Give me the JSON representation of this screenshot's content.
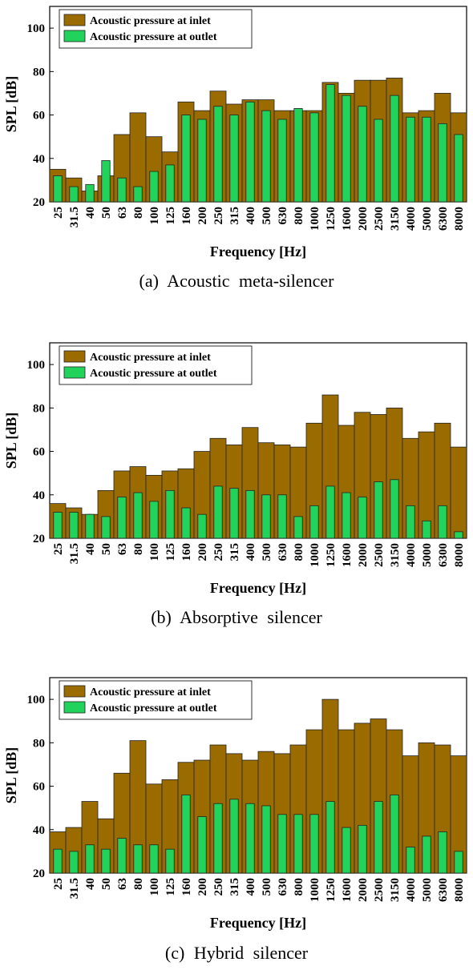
{
  "legend": {
    "inlet": "Acoustic pressure at inlet",
    "outlet": "Acoustic pressure at outlet"
  },
  "colors": {
    "inlet": "#9a6c00",
    "outlet": "#22d35b",
    "edge": "#222222"
  },
  "chart_data": [
    {
      "type": "bar",
      "caption": "(a)  Acoustic  meta-silencer",
      "xlabel": "Frequency [Hz]",
      "ylabel": "SPL [dB]",
      "ylim": [
        20,
        110
      ],
      "yticks": [
        20,
        40,
        60,
        80,
        100
      ],
      "grid": false,
      "legend_position": "top-left",
      "categories": [
        "25",
        "31.5",
        "40",
        "50",
        "63",
        "80",
        "100",
        "125",
        "160",
        "200",
        "250",
        "315",
        "400",
        "500",
        "630",
        "800",
        "1000",
        "1250",
        "1600",
        "2000",
        "2500",
        "3150",
        "4000",
        "5000",
        "6300",
        "8000"
      ],
      "series": [
        {
          "name": "Acoustic pressure at inlet",
          "values": [
            35,
            31,
            25,
            32,
            51,
            61,
            50,
            43,
            66,
            62,
            71,
            65,
            67,
            67,
            62,
            62,
            62,
            75,
            70,
            76,
            76,
            77,
            61,
            62,
            70,
            61
          ]
        },
        {
          "name": "Acoustic pressure at outlet",
          "values": [
            32,
            27,
            28,
            39,
            31,
            27,
            34,
            37,
            60,
            58,
            64,
            60,
            66,
            62,
            58,
            63,
            61,
            74,
            69,
            64,
            58,
            69,
            59,
            59,
            56,
            51
          ]
        }
      ]
    },
    {
      "type": "bar",
      "caption": "(b)  Absorptive  silencer",
      "xlabel": "Frequency [Hz]",
      "ylabel": "SPL [dB]",
      "ylim": [
        20,
        110
      ],
      "yticks": [
        20,
        40,
        60,
        80,
        100
      ],
      "grid": false,
      "legend_position": "top-left",
      "categories": [
        "25",
        "31.5",
        "40",
        "50",
        "63",
        "80",
        "100",
        "125",
        "160",
        "200",
        "250",
        "315",
        "400",
        "500",
        "630",
        "800",
        "1000",
        "1250",
        "1600",
        "2000",
        "2500",
        "3150",
        "4000",
        "5000",
        "6300",
        "8000"
      ],
      "series": [
        {
          "name": "Acoustic pressure at inlet",
          "values": [
            36,
            34,
            31,
            42,
            51,
            53,
            49,
            51,
            52,
            60,
            66,
            63,
            71,
            64,
            63,
            62,
            73,
            86,
            72,
            78,
            77,
            80,
            66,
            69,
            73,
            62
          ]
        },
        {
          "name": "Acoustic pressure at outlet",
          "values": [
            32,
            32,
            31,
            30,
            39,
            41,
            37,
            42,
            34,
            31,
            44,
            43,
            42,
            40,
            40,
            30,
            35,
            44,
            41,
            39,
            46,
            47,
            35,
            28,
            35,
            23
          ]
        }
      ]
    },
    {
      "type": "bar",
      "caption": "(c)  Hybrid  silencer",
      "xlabel": "Frequency [Hz]",
      "ylabel": "SPL [dB]",
      "ylim": [
        20,
        110
      ],
      "yticks": [
        20,
        40,
        60,
        80,
        100
      ],
      "grid": false,
      "legend_position": "top-left",
      "categories": [
        "25",
        "31.5",
        "40",
        "50",
        "63",
        "80",
        "100",
        "125",
        "160",
        "200",
        "250",
        "315",
        "400",
        "500",
        "630",
        "800",
        "1000",
        "1250",
        "1600",
        "2000",
        "2500",
        "3150",
        "4000",
        "5000",
        "6300",
        "8000"
      ],
      "series": [
        {
          "name": "Acoustic pressure at inlet",
          "values": [
            39,
            41,
            53,
            45,
            66,
            81,
            61,
            63,
            71,
            72,
            79,
            75,
            72,
            76,
            75,
            79,
            86,
            100,
            86,
            89,
            91,
            86,
            74,
            80,
            79,
            74
          ]
        },
        {
          "name": "Acoustic pressure at outlet",
          "values": [
            31,
            30,
            33,
            31,
            36,
            33,
            33,
            31,
            56,
            46,
            52,
            54,
            52,
            51,
            47,
            47,
            47,
            53,
            41,
            42,
            53,
            56,
            32,
            37,
            39,
            30
          ]
        }
      ]
    }
  ]
}
